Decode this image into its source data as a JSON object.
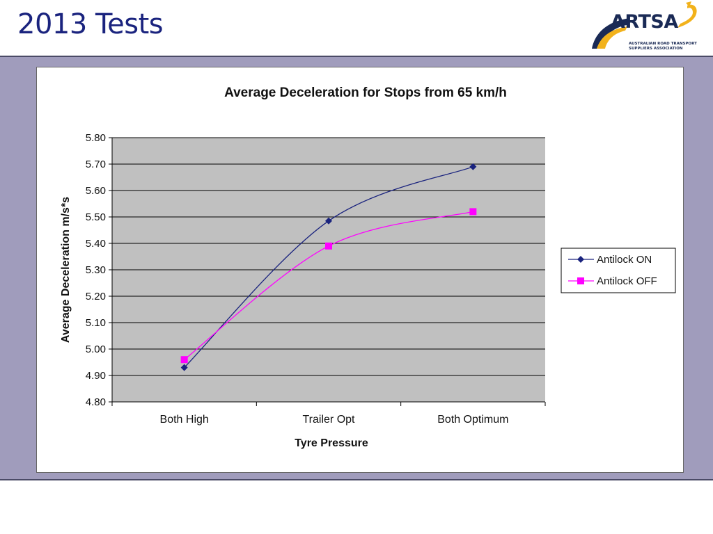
{
  "slide": {
    "title": "2013 Tests",
    "logo_text": "ARTSA",
    "logo_subtitle": "AUSTRALIAN ROAD TRANSPORT\nSUPPLIERS ASSOCIATION"
  },
  "chart_data": {
    "type": "line",
    "title": "Average Deceleration for Stops from 65 km/h",
    "xlabel": "Tyre Pressure",
    "ylabel": "Average Deceleration m/s*s",
    "categories": [
      "Both High",
      "Trailer Opt",
      "Both Optimum"
    ],
    "ylim": [
      4.8,
      5.8
    ],
    "yticks": [
      "5.80",
      "5.70",
      "5.60",
      "5.50",
      "5.40",
      "5.30",
      "5.20",
      "5.10",
      "5.00",
      "4.90",
      "4.80"
    ],
    "grid": true,
    "legend_position": "right",
    "series": [
      {
        "name": "Antilock ON",
        "values": [
          4.93,
          5.485,
          5.69
        ],
        "color": "#1a237e",
        "marker": "diamond"
      },
      {
        "name": "Antilock OFF",
        "values": [
          4.96,
          5.39,
          5.52
        ],
        "color": "#ff00ff",
        "marker": "square"
      }
    ],
    "colors": {
      "plot_background": "#c0c0c0",
      "gridline": "#000000"
    }
  }
}
